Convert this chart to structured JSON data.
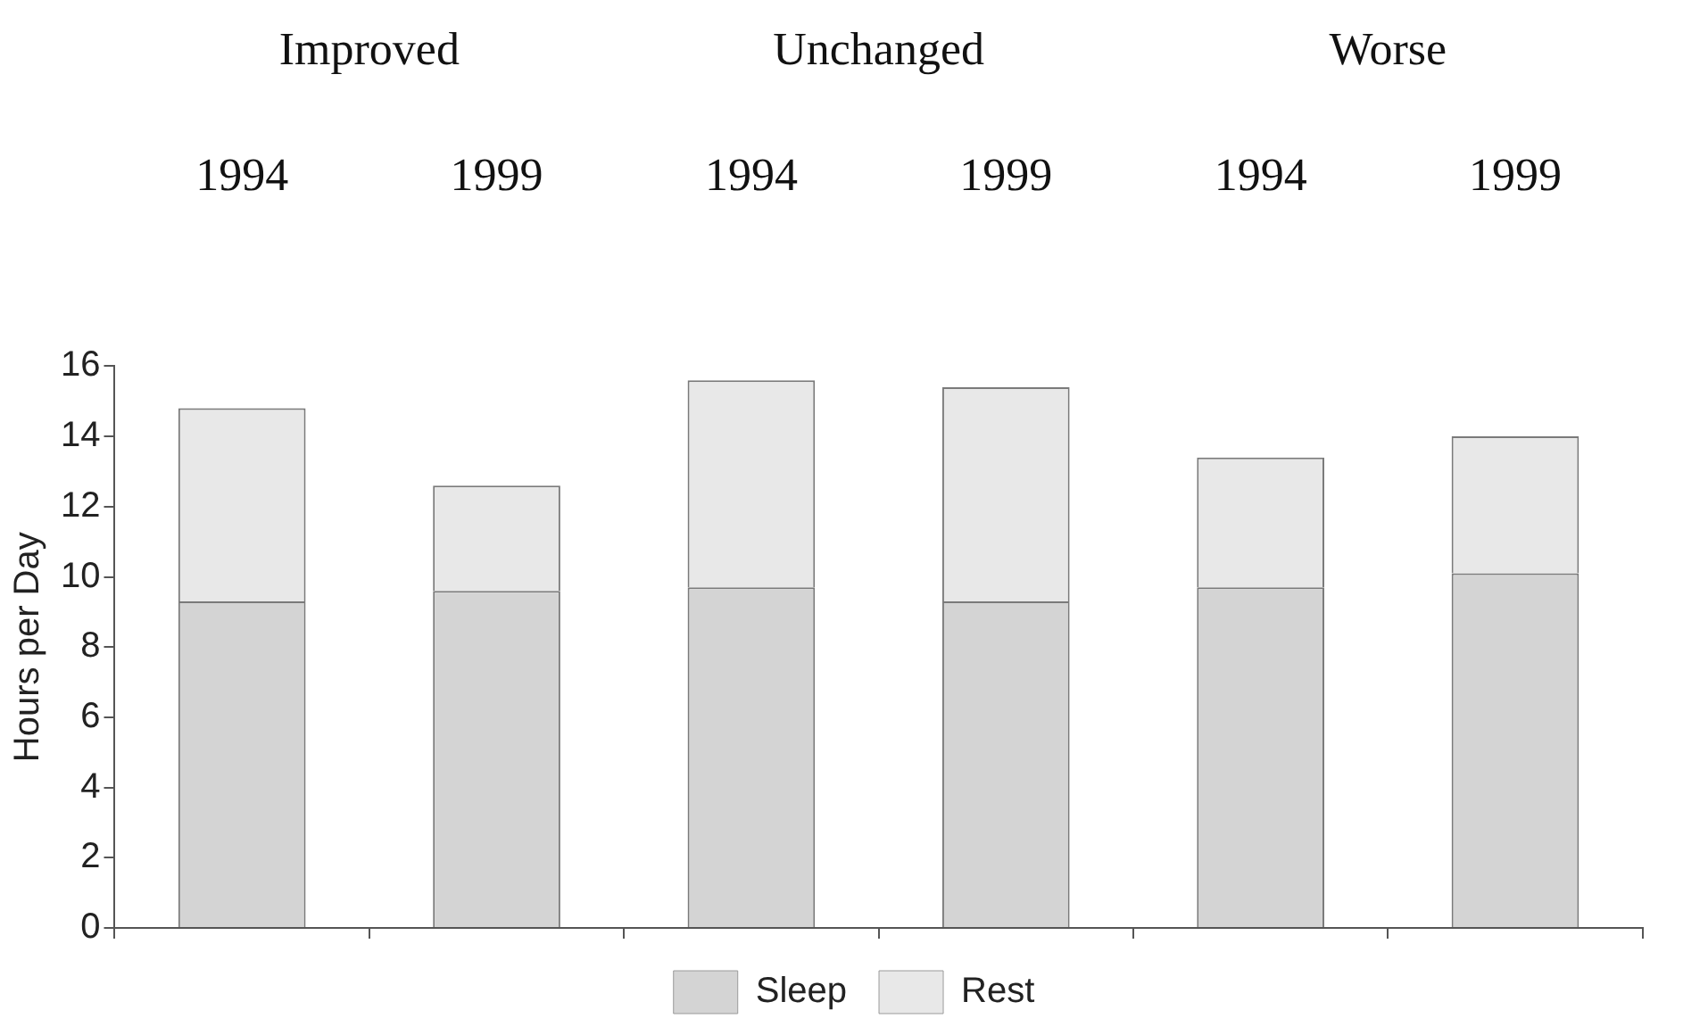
{
  "chart_data": {
    "type": "bar",
    "stacked": true,
    "ylabel": "Hours per Day",
    "categories": [
      "1994",
      "1999",
      "1994",
      "1999",
      "1994",
      "1999"
    ],
    "series": [
      {
        "name": "Sleep",
        "color": "#d4d4d4",
        "values": [
          9.3,
          9.6,
          9.7,
          9.3,
          9.7,
          10.1
        ]
      },
      {
        "name": "Rest",
        "color": "#e8e8e8",
        "values": [
          5.5,
          3.0,
          5.9,
          6.1,
          3.7,
          3.9
        ]
      }
    ],
    "annotations": [
      "Improved",
      "Unchanged",
      "Worse"
    ],
    "ylim": [
      0,
      16
    ],
    "yticks": [
      0,
      2,
      4,
      6,
      8,
      10,
      12,
      14,
      16
    ],
    "grid": false,
    "legend": "bottom"
  }
}
